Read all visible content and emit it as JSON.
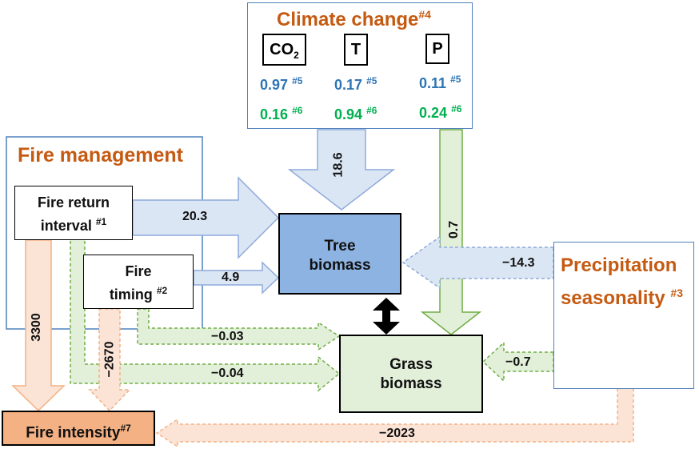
{
  "climate": {
    "title": "Climate change",
    "title_sup": "#4",
    "vars": [
      {
        "label": "CO",
        "sub": "2",
        "v5": "0.97",
        "v6": "0.16"
      },
      {
        "label": "T",
        "sub": "",
        "v5": "0.17",
        "v6": "0.94"
      },
      {
        "label": "P",
        "sub": "",
        "v5": "0.11",
        "v6": "0.24"
      }
    ],
    "sup5": "#5",
    "sup6": "#6"
  },
  "fire_management": {
    "title": "Fire management",
    "return_interval": {
      "line1": "Fire return",
      "line2": "interval",
      "sup": "#1"
    },
    "timing": {
      "line1": "Fire",
      "line2": "timing",
      "sup": "#2"
    }
  },
  "precip": {
    "line1": "Precipitation",
    "line2": "seasonality",
    "sup": "#3"
  },
  "tree": {
    "line1": "Tree",
    "line2": "biomass"
  },
  "grass": {
    "line1": "Grass",
    "line2": "biomass"
  },
  "fire_intensity": {
    "label": "Fire intensity",
    "sup": "#7"
  },
  "edges": {
    "climate_tree": "18.6",
    "climate_grass": "0.7",
    "fri_tree": "20.3",
    "timing_tree": "4.9",
    "precip_tree": "−14.3",
    "precip_grass": "−0.7",
    "timing_grass": "−0.03",
    "fri_grass": "−0.04",
    "fri_intensity": "3300",
    "timing_intensity": "−2670",
    "precip_intensity": "−2023"
  },
  "colors": {
    "blue_fill": "#dbe6f4",
    "blue_stroke": "#8eaadb",
    "green_fill": "#e2efd9",
    "green_stroke": "#70ad47",
    "peach_fill": "#fbe3d6",
    "peach_stroke": "#f4b183",
    "tree_fill": "#8db3e2",
    "grass_fill": "#e2efd9",
    "intensity_fill": "#f4b183",
    "orange_text": "#c55a11"
  }
}
